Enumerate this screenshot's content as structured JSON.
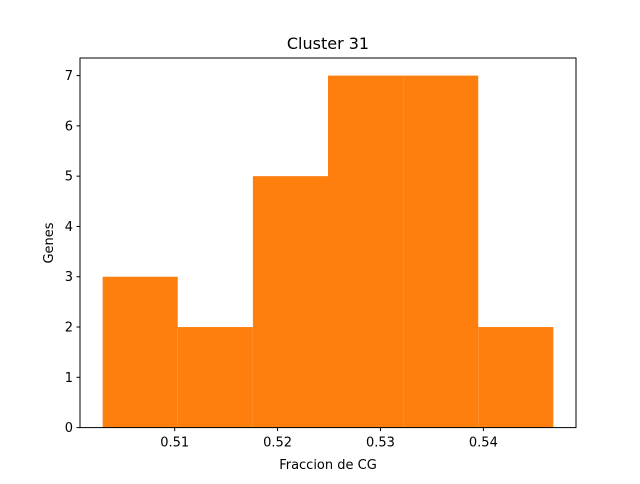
{
  "chart_data": {
    "type": "bar",
    "title": "Cluster 31",
    "xlabel": "Fraccion de CG",
    "ylabel": "Genes",
    "bin_edges": [
      0.503,
      0.5103,
      0.5176,
      0.5249,
      0.5322,
      0.5395,
      0.5468
    ],
    "values": [
      3,
      2,
      5,
      7,
      7,
      2
    ],
    "xlim": [
      0.5008,
      0.549
    ],
    "ylim": [
      0,
      7.35
    ],
    "xticks": [
      0.51,
      0.52,
      0.53,
      0.54
    ],
    "xtick_labels": [
      "0.51",
      "0.52",
      "0.53",
      "0.54"
    ],
    "yticks": [
      0,
      1,
      2,
      3,
      4,
      5,
      6,
      7
    ],
    "ytick_labels": [
      "0",
      "1",
      "2",
      "3",
      "4",
      "5",
      "6",
      "7"
    ],
    "bar_color": "#ff7f0e",
    "grid": false,
    "legend": "none"
  }
}
